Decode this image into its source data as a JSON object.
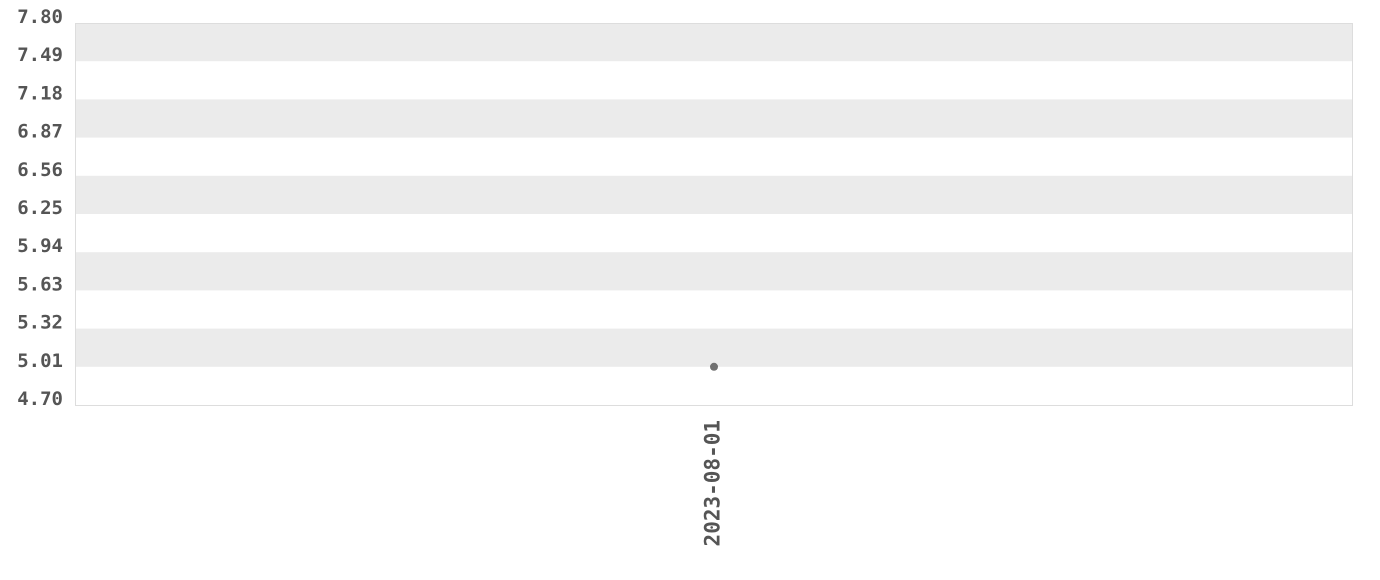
{
  "chart_data": {
    "type": "scatter",
    "title": "",
    "xlabel": "",
    "ylabel": "",
    "ylim": [
      4.7,
      7.8
    ],
    "y_ticks": [
      "7.80",
      "7.49",
      "7.18",
      "6.87",
      "6.56",
      "6.25",
      "5.94",
      "5.63",
      "5.32",
      "5.01",
      "4.70"
    ],
    "x_ticks": [
      "2023-08-01"
    ],
    "grid": "alternating horizontal bands",
    "series": [
      {
        "points": [
          {
            "x": "2023-08-01",
            "y": 5.01
          }
        ]
      }
    ],
    "colors": {
      "band": "#ebebeb",
      "point": "#707070",
      "text": "#555555",
      "border": "#dddddd"
    }
  }
}
